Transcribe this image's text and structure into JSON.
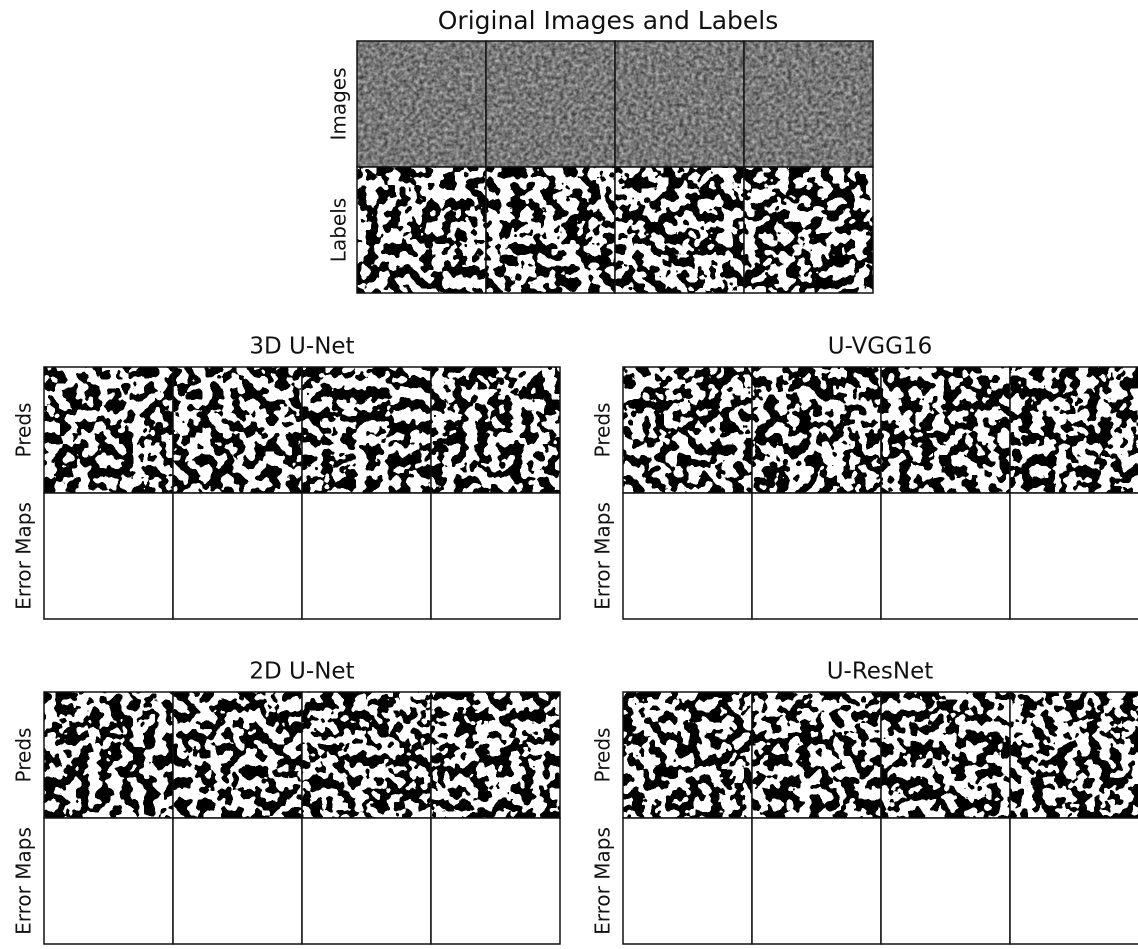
{
  "title": "Original Images and Labels",
  "top": {
    "row_labels": [
      "Images",
      "Labels"
    ]
  },
  "panels": [
    {
      "title": "3D U-Net",
      "row_labels": [
        "Preds",
        "Error Maps"
      ]
    },
    {
      "title": "U-VGG16",
      "row_labels": [
        "Preds",
        "Error Maps"
      ]
    },
    {
      "title": "2D U-Net",
      "row_labels": [
        "Preds",
        "Error Maps"
      ]
    },
    {
      "title": "U-ResNet",
      "row_labels": [
        "Preds",
        "Error Maps"
      ]
    }
  ]
}
